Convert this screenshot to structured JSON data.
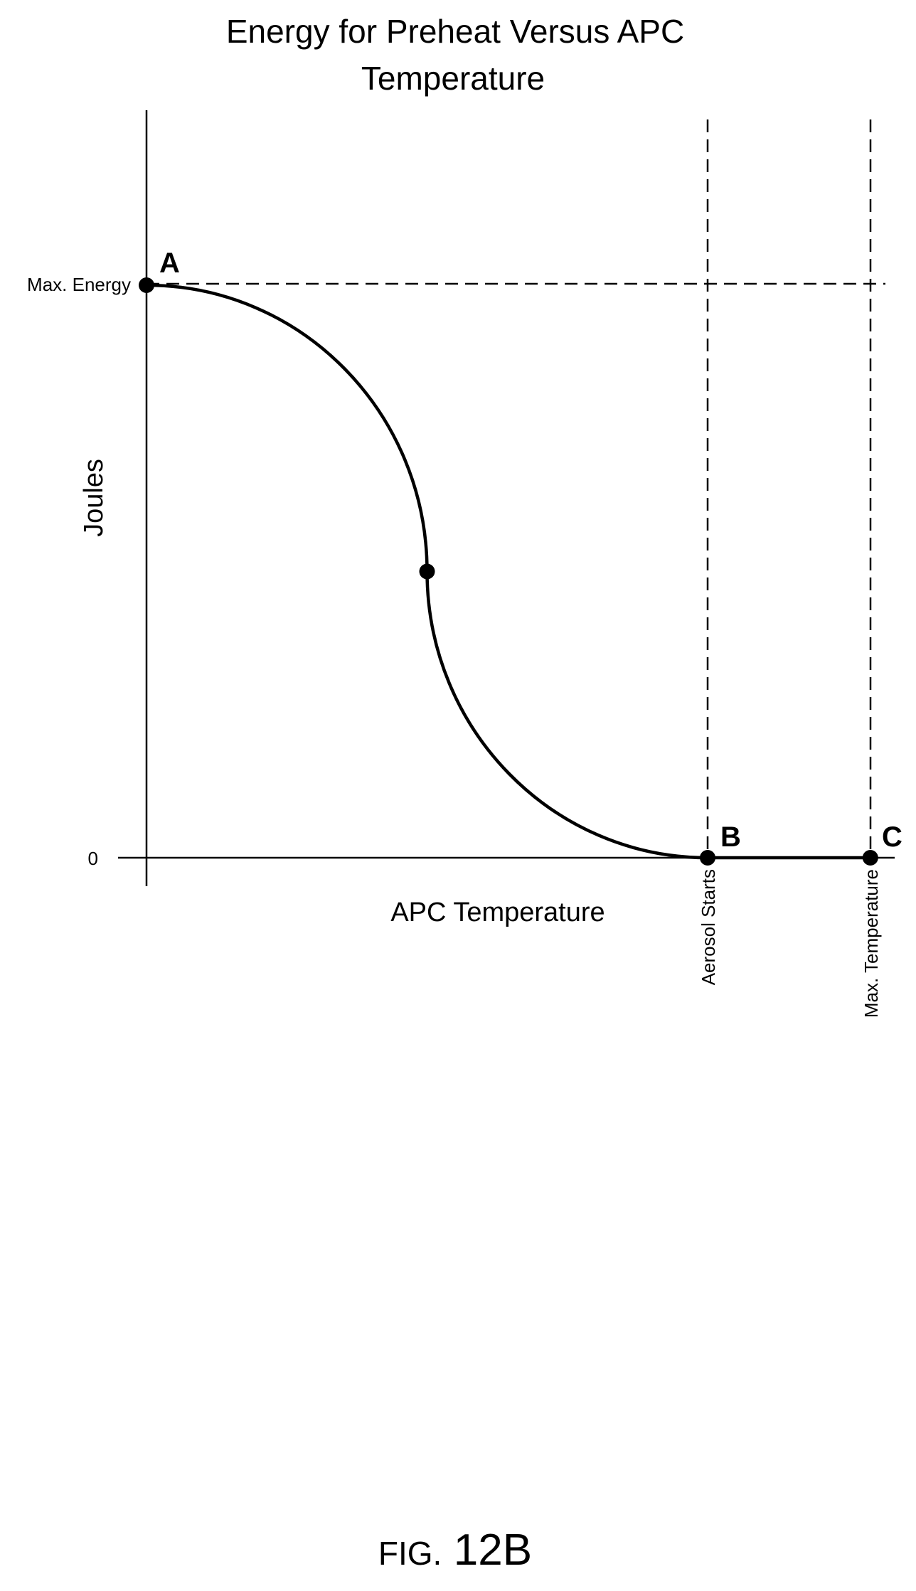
{
  "figure": {
    "caption_prefix": "FIG.",
    "caption_number": "12B"
  },
  "chart_data": {
    "type": "line",
    "title_lines": [
      "Energy for Preheat Versus APC",
      "Temperature"
    ],
    "xlabel": "APC Temperature",
    "ylabel": "Joules",
    "y_ticks": [
      {
        "label": "Max. Energy",
        "value": 1
      },
      {
        "label": "0",
        "value": 0
      }
    ],
    "x_range": [
      0,
      1.33
    ],
    "y_range": [
      0,
      1.3
    ],
    "reference_lines": {
      "horizontal": [
        {
          "value": 1,
          "label": "Max. Energy",
          "style": "dashed"
        }
      ],
      "vertical": [
        {
          "value": 1.0,
          "label": "Aerosol Starts",
          "style": "dashed"
        },
        {
          "value": 1.29,
          "label": "Max. Temperature",
          "style": "dashed"
        }
      ]
    },
    "points": [
      {
        "label": "A",
        "x": 0,
        "y": 1
      },
      {
        "label": "",
        "x": 0.5,
        "y": 0.5
      },
      {
        "label": "B",
        "x": 1.0,
        "y": 0
      },
      {
        "label": "C",
        "x": 1.29,
        "y": 0
      }
    ],
    "series": [
      {
        "style": "solid",
        "description_points": [
          [
            0,
            1
          ],
          [
            0.5,
            0.5
          ],
          [
            1.0,
            0
          ],
          [
            1.29,
            0
          ]
        ]
      }
    ],
    "grid": false,
    "legend": "none"
  }
}
